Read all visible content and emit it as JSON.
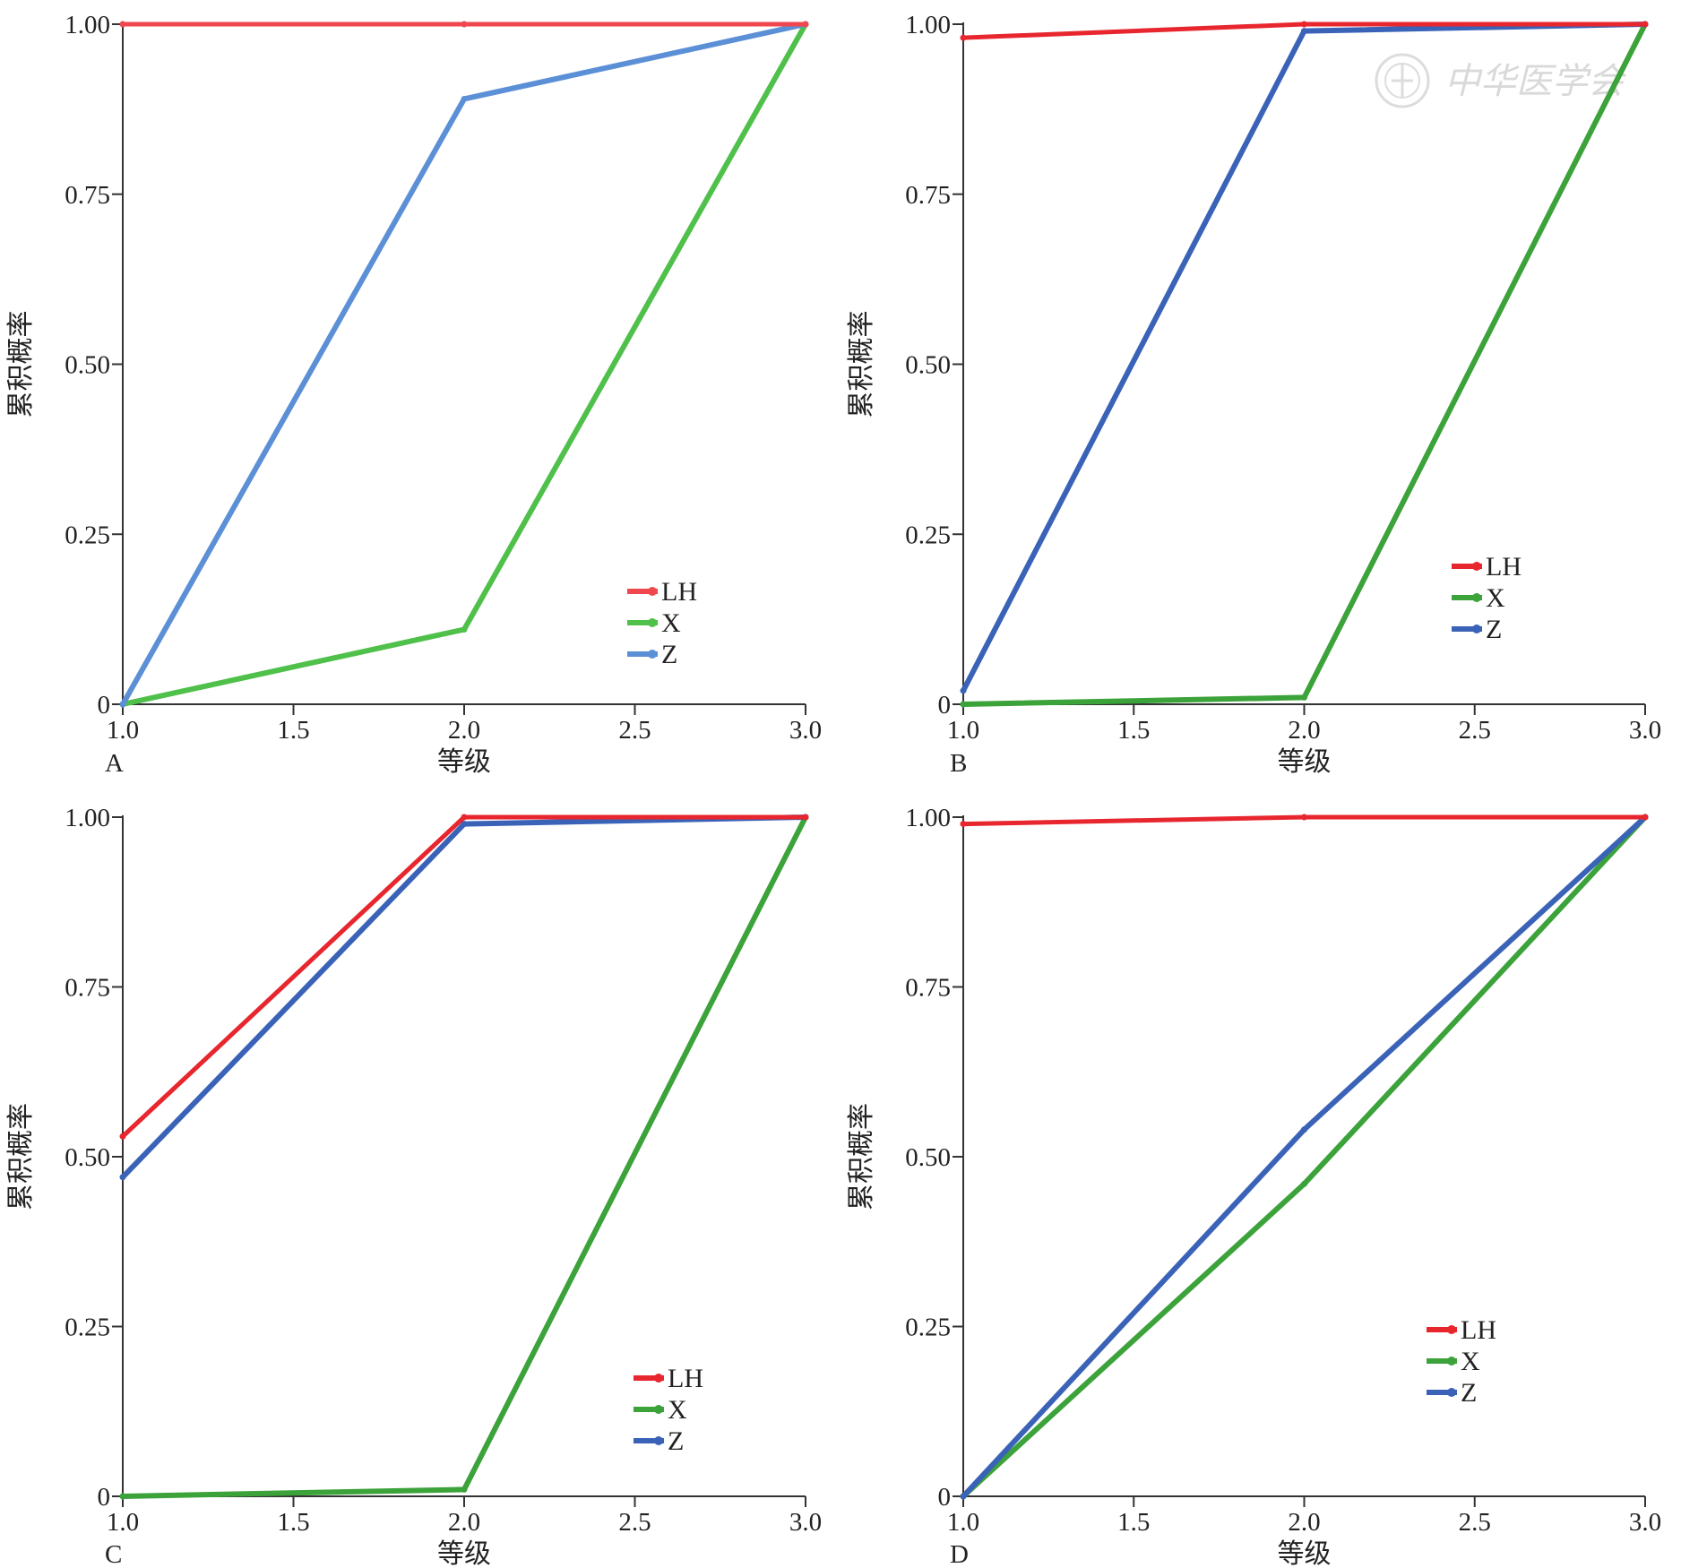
{
  "chart_data": [
    {
      "type": "line",
      "panel": "A",
      "xlabel": "等级",
      "ylabel": "累积概率",
      "xlim": [
        1.0,
        3.0
      ],
      "ylim": [
        0,
        1.0
      ],
      "x_ticks": [
        "1.0",
        "1.5",
        "2.0",
        "2.5",
        "3.0"
      ],
      "y_ticks": [
        "0",
        "0.25",
        "0.50",
        "0.75",
        "1.00"
      ],
      "legend_position": "bottom-right",
      "x": [
        1.0,
        2.0,
        3.0
      ],
      "series": [
        {
          "name": "LH",
          "color": "#f0474e",
          "values": [
            1.0,
            1.0,
            1.0
          ]
        },
        {
          "name": "X",
          "color": "#4fc04a",
          "values": [
            0.0,
            0.11,
            1.0
          ]
        },
        {
          "name": "Z",
          "color": "#5b8fd6",
          "values": [
            0.0,
            0.89,
            1.0
          ]
        }
      ]
    },
    {
      "type": "line",
      "panel": "B",
      "xlabel": "等级",
      "ylabel": "累积概率",
      "xlim": [
        1.0,
        3.0
      ],
      "ylim": [
        0,
        1.0
      ],
      "x_ticks": [
        "1.0",
        "1.5",
        "2.0",
        "2.5",
        "3.0"
      ],
      "y_ticks": [
        "0",
        "0.25",
        "0.50",
        "0.75",
        "1.00"
      ],
      "legend_position": "center-right",
      "x": [
        1.0,
        2.0,
        3.0
      ],
      "series": [
        {
          "name": "LH",
          "color": "#e8262e",
          "values": [
            0.98,
            1.0,
            1.0
          ]
        },
        {
          "name": "X",
          "color": "#3ca23a",
          "values": [
            0.0,
            0.01,
            1.0
          ]
        },
        {
          "name": "Z",
          "color": "#3a63b8",
          "values": [
            0.02,
            0.99,
            1.0
          ]
        }
      ]
    },
    {
      "type": "line",
      "panel": "C",
      "xlabel": "等级",
      "ylabel": "累积概率",
      "xlim": [
        1.0,
        3.0
      ],
      "ylim": [
        0,
        1.0
      ],
      "x_ticks": [
        "1.0",
        "1.5",
        "2.0",
        "2.5",
        "3.0"
      ],
      "y_ticks": [
        "0",
        "0.25",
        "0.50",
        "0.75",
        "1.00"
      ],
      "legend_position": "bottom-right",
      "x": [
        1.0,
        2.0,
        3.0
      ],
      "series": [
        {
          "name": "LH",
          "color": "#e8262e",
          "values": [
            0.53,
            1.0,
            1.0
          ]
        },
        {
          "name": "X",
          "color": "#3ca23a",
          "values": [
            0.0,
            0.01,
            1.0
          ]
        },
        {
          "name": "Z",
          "color": "#3a63b8",
          "values": [
            0.47,
            0.99,
            1.0
          ]
        }
      ]
    },
    {
      "type": "line",
      "panel": "D",
      "xlabel": "等级",
      "ylabel": "累积概率",
      "xlim": [
        1.0,
        3.0
      ],
      "ylim": [
        0,
        1.0
      ],
      "x_ticks": [
        "1.0",
        "1.5",
        "2.0",
        "2.5",
        "3.0"
      ],
      "y_ticks": [
        "0",
        "0.25",
        "0.50",
        "0.75",
        "1.00"
      ],
      "legend_position": "bottom-right",
      "x": [
        1.0,
        2.0,
        3.0
      ],
      "series": [
        {
          "name": "LH",
          "color": "#e8262e",
          "values": [
            0.99,
            1.0,
            1.0
          ]
        },
        {
          "name": "X",
          "color": "#3ca23a",
          "values": [
            0.0,
            0.46,
            1.0
          ]
        },
        {
          "name": "Z",
          "color": "#3a63b8",
          "values": [
            0.0,
            0.54,
            1.0
          ]
        }
      ]
    }
  ],
  "watermark": {
    "text": "中华医学会",
    "icon": "seal-logo-icon",
    "color": "#d9d9d9"
  }
}
